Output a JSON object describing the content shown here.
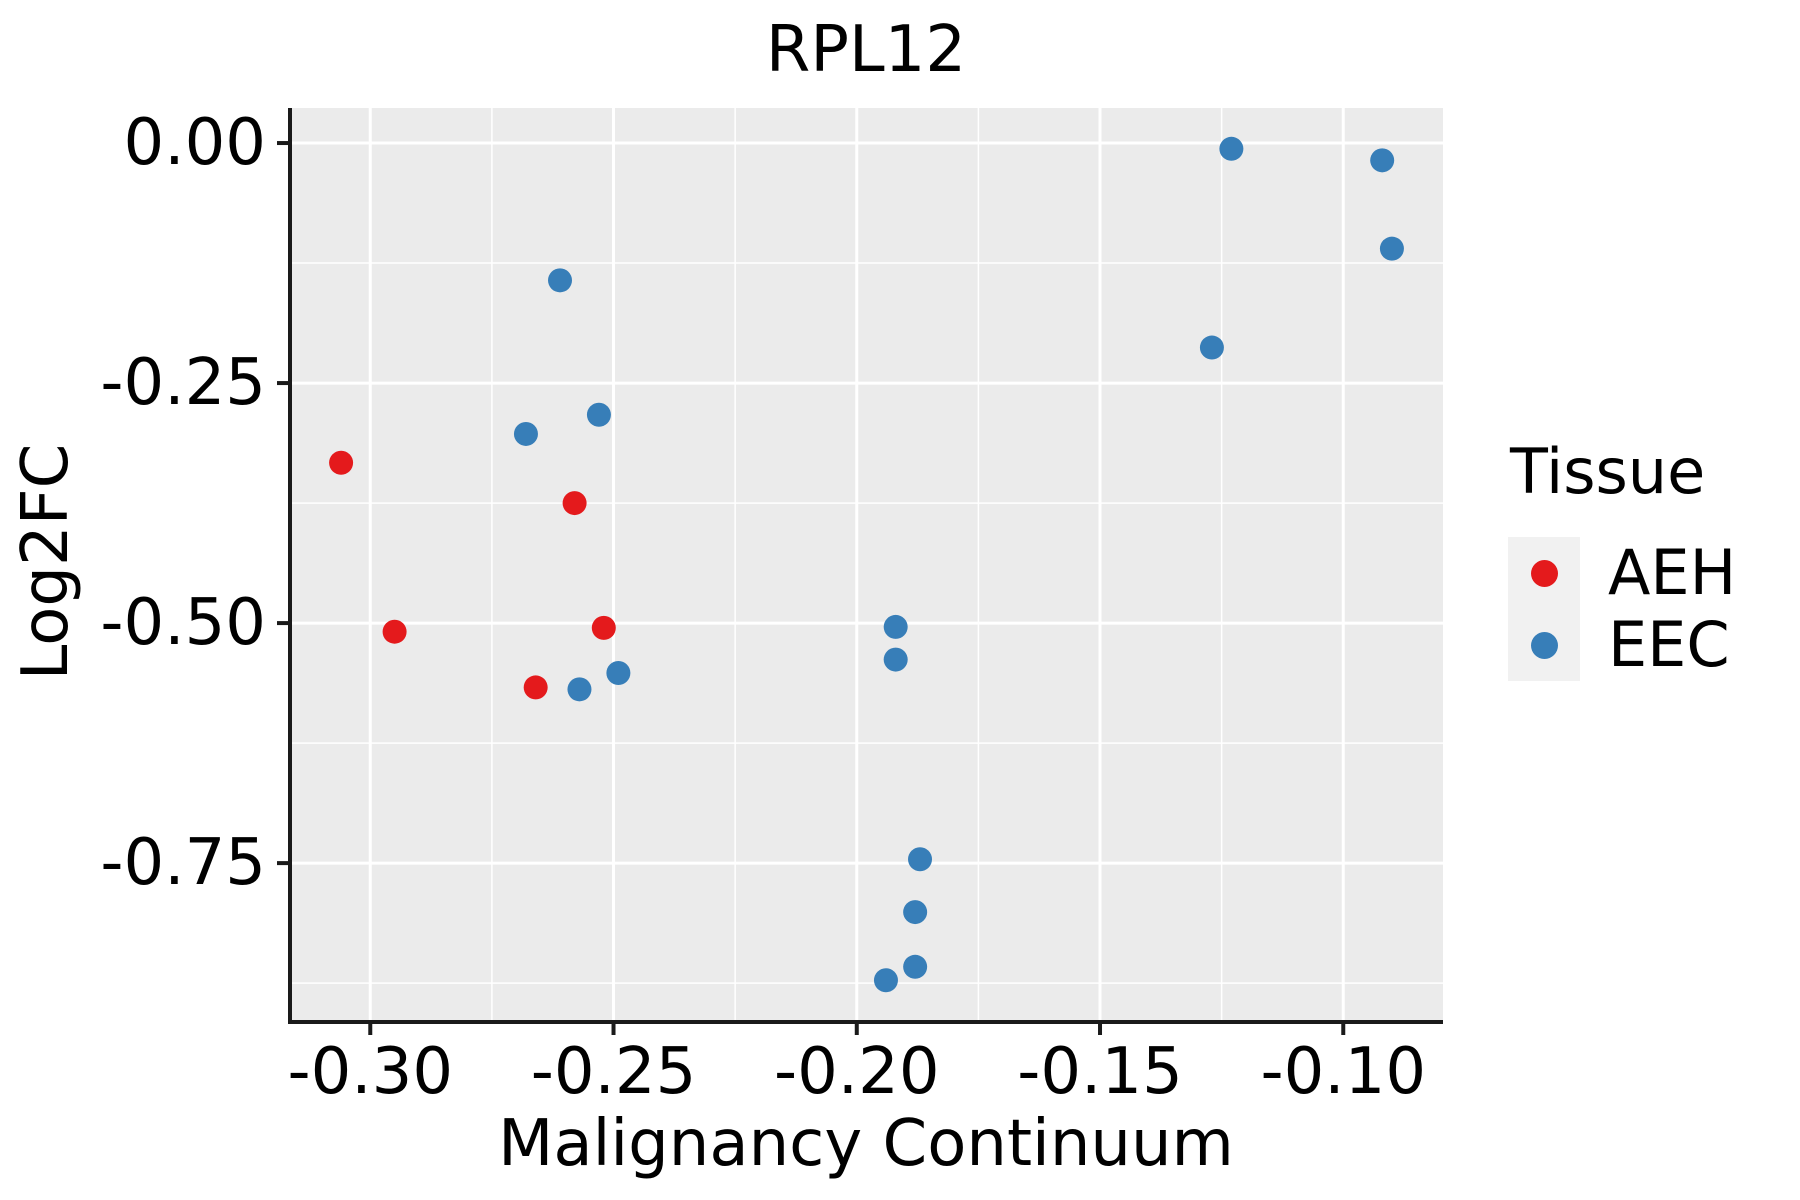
{
  "chart_data": {
    "type": "scatter",
    "title": "RPL12",
    "xlabel": "Malignancy Continuum",
    "ylabel": "Log2FC",
    "legend_title": "Tissue",
    "legend_position": "right",
    "grid": "major and minor white gridlines on gray panel",
    "xlim": [
      -0.3165,
      -0.0795
    ],
    "ylim": [
      -0.9155,
      0.0365
    ],
    "x_ticks": [
      -0.3,
      -0.25,
      -0.2,
      -0.15,
      -0.1
    ],
    "x_tick_labels": [
      "-0.30",
      "-0.25",
      "-0.20",
      "-0.15",
      "-0.10"
    ],
    "x_minor_ticks": [
      -0.275,
      -0.225,
      -0.175,
      -0.125
    ],
    "y_ticks": [
      0.0,
      -0.25,
      -0.5,
      -0.75
    ],
    "y_tick_labels": [
      "0.00",
      "-0.25",
      "-0.50",
      "-0.75"
    ],
    "y_minor_ticks": [
      -0.125,
      -0.375,
      -0.625,
      -0.875
    ],
    "series": [
      {
        "name": "AEH",
        "color": "#E41A1C",
        "points": [
          [
            -0.306,
            -0.333
          ],
          [
            -0.295,
            -0.509
          ],
          [
            -0.258,
            -0.375
          ],
          [
            -0.266,
            -0.567
          ],
          [
            -0.252,
            -0.505
          ]
        ]
      },
      {
        "name": "EEC",
        "color": "#377EB8",
        "points": [
          [
            -0.261,
            -0.143
          ],
          [
            -0.268,
            -0.303
          ],
          [
            -0.253,
            -0.283
          ],
          [
            -0.257,
            -0.569
          ],
          [
            -0.249,
            -0.552
          ],
          [
            -0.192,
            -0.504
          ],
          [
            -0.192,
            -0.538
          ],
          [
            -0.187,
            -0.746
          ],
          [
            -0.188,
            -0.801
          ],
          [
            -0.188,
            -0.858
          ],
          [
            -0.194,
            -0.872
          ],
          [
            -0.127,
            -0.213
          ],
          [
            -0.123,
            -0.006
          ],
          [
            -0.092,
            -0.018
          ],
          [
            -0.09,
            -0.11
          ]
        ]
      }
    ],
    "colors": {
      "panel_background": "#EBEBEB",
      "gridline": "#FFFFFF",
      "axis_line": "#1A1A1A",
      "text": "#000000",
      "legend_key_background": "#F1F1F1"
    }
  }
}
